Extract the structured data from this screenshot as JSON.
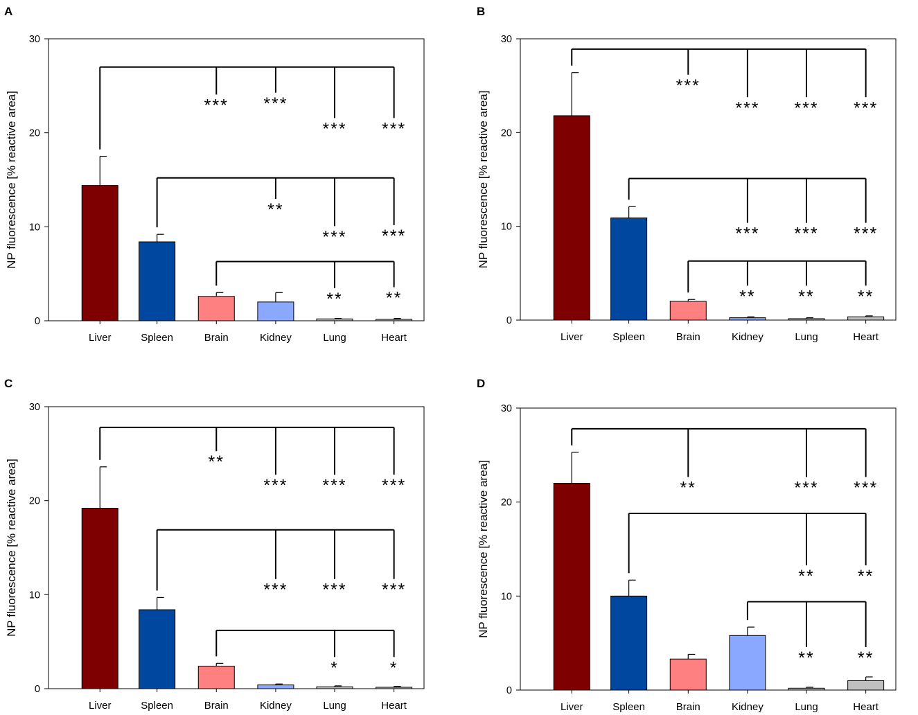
{
  "figure": {
    "panels": [
      {
        "label": "A",
        "ylabel": "NP fluorescence [% reactive area]",
        "ylim": [
          0,
          30
        ],
        "yticks": [
          "0",
          "10",
          "20",
          "30"
        ],
        "chart_data_ref": 0
      },
      {
        "label": "B",
        "ylabel": "NP fluorescence [% reactive area]",
        "ylim": [
          0,
          30
        ],
        "yticks": [
          "0",
          "10",
          "20",
          "30"
        ],
        "chart_data_ref": 1
      },
      {
        "label": "C",
        "ylabel": "NP fluorescence [% reactive area]",
        "ylim": [
          0,
          30
        ],
        "yticks": [
          "0",
          "10",
          "20",
          "30"
        ],
        "chart_data_ref": 2
      },
      {
        "label": "D",
        "ylabel": "NP fluorescence [% reactive area]",
        "ylim": [
          0,
          30
        ],
        "yticks": [
          "0",
          "10",
          "20",
          "30"
        ],
        "chart_data_ref": 3
      }
    ]
  },
  "chart_data": [
    {
      "type": "bar",
      "title": "A",
      "xlabel": "",
      "ylabel": "NP fluorescence [% reactive area]",
      "ylim": [
        0,
        30
      ],
      "categories": [
        "Liver",
        "Spleen",
        "Brain",
        "Kidney",
        "Lung",
        "Heart"
      ],
      "values": [
        14.4,
        8.4,
        2.6,
        2.0,
        0.2,
        0.15
      ],
      "errors": [
        3.1,
        0.8,
        0.4,
        1.0,
        0.05,
        0.1
      ],
      "colors": [
        "#7f0000",
        "#0047a0",
        "#ff8080",
        "#8aa8ff",
        "#c0c0c0",
        "#c0c0c0"
      ],
      "significance": [
        {
          "from": "Liver",
          "bracket_y": 27.0,
          "to": [
            {
              "target": "Brain",
              "stars": "***",
              "label_y": 22.3
            },
            {
              "target": "Kidney",
              "stars": "***",
              "label_y": 22.5
            },
            {
              "target": "Lung",
              "stars": "***",
              "label_y": 19.8
            },
            {
              "target": "Heart",
              "stars": "***",
              "label_y": 19.8
            }
          ]
        },
        {
          "from": "Spleen",
          "bracket_y": 15.2,
          "to": [
            {
              "target": "Kidney",
              "stars": "**",
              "label_y": 11.2
            },
            {
              "target": "Lung",
              "stars": "***",
              "label_y": 8.3
            },
            {
              "target": "Heart",
              "stars": "***",
              "label_y": 8.4
            }
          ]
        },
        {
          "from": "Brain",
          "bracket_y": 6.3,
          "to": [
            {
              "target": "Lung",
              "stars": "**",
              "label_y": 1.7
            },
            {
              "target": "Heart",
              "stars": "**",
              "label_y": 1.8
            }
          ]
        }
      ]
    },
    {
      "type": "bar",
      "title": "B",
      "xlabel": "",
      "ylabel": "NP fluorescence [% reactive area]",
      "ylim": [
        0,
        30
      ],
      "categories": [
        "Liver",
        "Spleen",
        "Brain",
        "Kidney",
        "Lung",
        "Heart"
      ],
      "values": [
        21.8,
        10.9,
        2.0,
        0.25,
        0.15,
        0.35
      ],
      "errors": [
        4.6,
        1.2,
        0.2,
        0.1,
        0.1,
        0.1
      ],
      "colors": [
        "#7f0000",
        "#0047a0",
        "#ff8080",
        "#8aa8ff",
        "#c0c0c0",
        "#c0c0c0"
      ],
      "significance": [
        {
          "from": "Liver",
          "bracket_y": 28.9,
          "to": [
            {
              "target": "Brain",
              "stars": "***",
              "label_y": 24.4
            },
            {
              "target": "Kidney",
              "stars": "***",
              "label_y": 22.0
            },
            {
              "target": "Lung",
              "stars": "***",
              "label_y": 22.0
            },
            {
              "target": "Heart",
              "stars": "***",
              "label_y": 22.0
            }
          ]
        },
        {
          "from": "Spleen",
          "bracket_y": 15.1,
          "to": [
            {
              "target": "Kidney",
              "stars": "***",
              "label_y": 8.6
            },
            {
              "target": "Lung",
              "stars": "***",
              "label_y": 8.6
            },
            {
              "target": "Heart",
              "stars": "***",
              "label_y": 8.6
            }
          ]
        },
        {
          "from": "Brain",
          "bracket_y": 6.3,
          "to": [
            {
              "target": "Kidney",
              "stars": "**",
              "label_y": 1.9
            },
            {
              "target": "Lung",
              "stars": "**",
              "label_y": 1.9
            },
            {
              "target": "Heart",
              "stars": "**",
              "label_y": 1.9
            }
          ]
        }
      ]
    },
    {
      "type": "bar",
      "title": "C",
      "xlabel": "",
      "ylabel": "NP fluorescence [% reactive area]",
      "ylim": [
        0,
        30
      ],
      "categories": [
        "Liver",
        "Spleen",
        "Brain",
        "Kidney",
        "Lung",
        "Heart"
      ],
      "values": [
        19.2,
        8.4,
        2.4,
        0.4,
        0.2,
        0.15
      ],
      "errors": [
        4.4,
        1.3,
        0.3,
        0.1,
        0.1,
        0.1
      ],
      "colors": [
        "#7f0000",
        "#0047a0",
        "#ff8080",
        "#8aa8ff",
        "#c0c0c0",
        "#c0c0c0"
      ],
      "significance": [
        {
          "from": "Liver",
          "bracket_y": 27.8,
          "to": [
            {
              "target": "Brain",
              "stars": "**",
              "label_y": 23.5
            },
            {
              "target": "Kidney",
              "stars": "***",
              "label_y": 21.0
            },
            {
              "target": "Lung",
              "stars": "***",
              "label_y": 21.0
            },
            {
              "target": "Heart",
              "stars": "***",
              "label_y": 21.0
            }
          ]
        },
        {
          "from": "Spleen",
          "bracket_y": 16.9,
          "to": [
            {
              "target": "Kidney",
              "stars": "***",
              "label_y": 9.9
            },
            {
              "target": "Lung",
              "stars": "***",
              "label_y": 9.9
            },
            {
              "target": "Heart",
              "stars": "***",
              "label_y": 9.9
            }
          ]
        },
        {
          "from": "Brain",
          "bracket_y": 6.2,
          "to": [
            {
              "target": "Lung",
              "stars": "*",
              "label_y": 1.6
            },
            {
              "target": "Heart",
              "stars": "*",
              "label_y": 1.6
            }
          ]
        }
      ]
    },
    {
      "type": "bar",
      "title": "D",
      "xlabel": "",
      "ylabel": "NP fluorescence [% reactive area]",
      "ylim": [
        0,
        30
      ],
      "categories": [
        "Liver",
        "Spleen",
        "Brain",
        "Kidney",
        "Lung",
        "Heart"
      ],
      "values": [
        22.0,
        10.0,
        3.3,
        5.8,
        0.2,
        1.0
      ],
      "errors": [
        3.3,
        1.7,
        0.5,
        0.9,
        0.1,
        0.4
      ],
      "colors": [
        "#7f0000",
        "#0047a0",
        "#ff8080",
        "#8aa8ff",
        "#c0c0c0",
        "#c0c0c0"
      ],
      "significance": [
        {
          "from": "Liver",
          "bracket_y": 27.8,
          "to": [
            {
              "target": "Brain",
              "stars": "**",
              "label_y": 20.9
            },
            {
              "target": "Lung",
              "stars": "***",
              "label_y": 20.9
            },
            {
              "target": "Heart",
              "stars": "***",
              "label_y": 20.9
            }
          ]
        },
        {
          "from": "Spleen",
          "bracket_y": 18.8,
          "to": [
            {
              "target": "Lung",
              "stars": "**",
              "label_y": 11.5
            },
            {
              "target": "Heart",
              "stars": "**",
              "label_y": 11.5
            }
          ]
        },
        {
          "from": "Kidney",
          "bracket_y": 9.4,
          "to": [
            {
              "target": "Lung",
              "stars": "**",
              "label_y": 2.8
            },
            {
              "target": "Heart",
              "stars": "**",
              "label_y": 2.8
            }
          ]
        }
      ]
    }
  ]
}
